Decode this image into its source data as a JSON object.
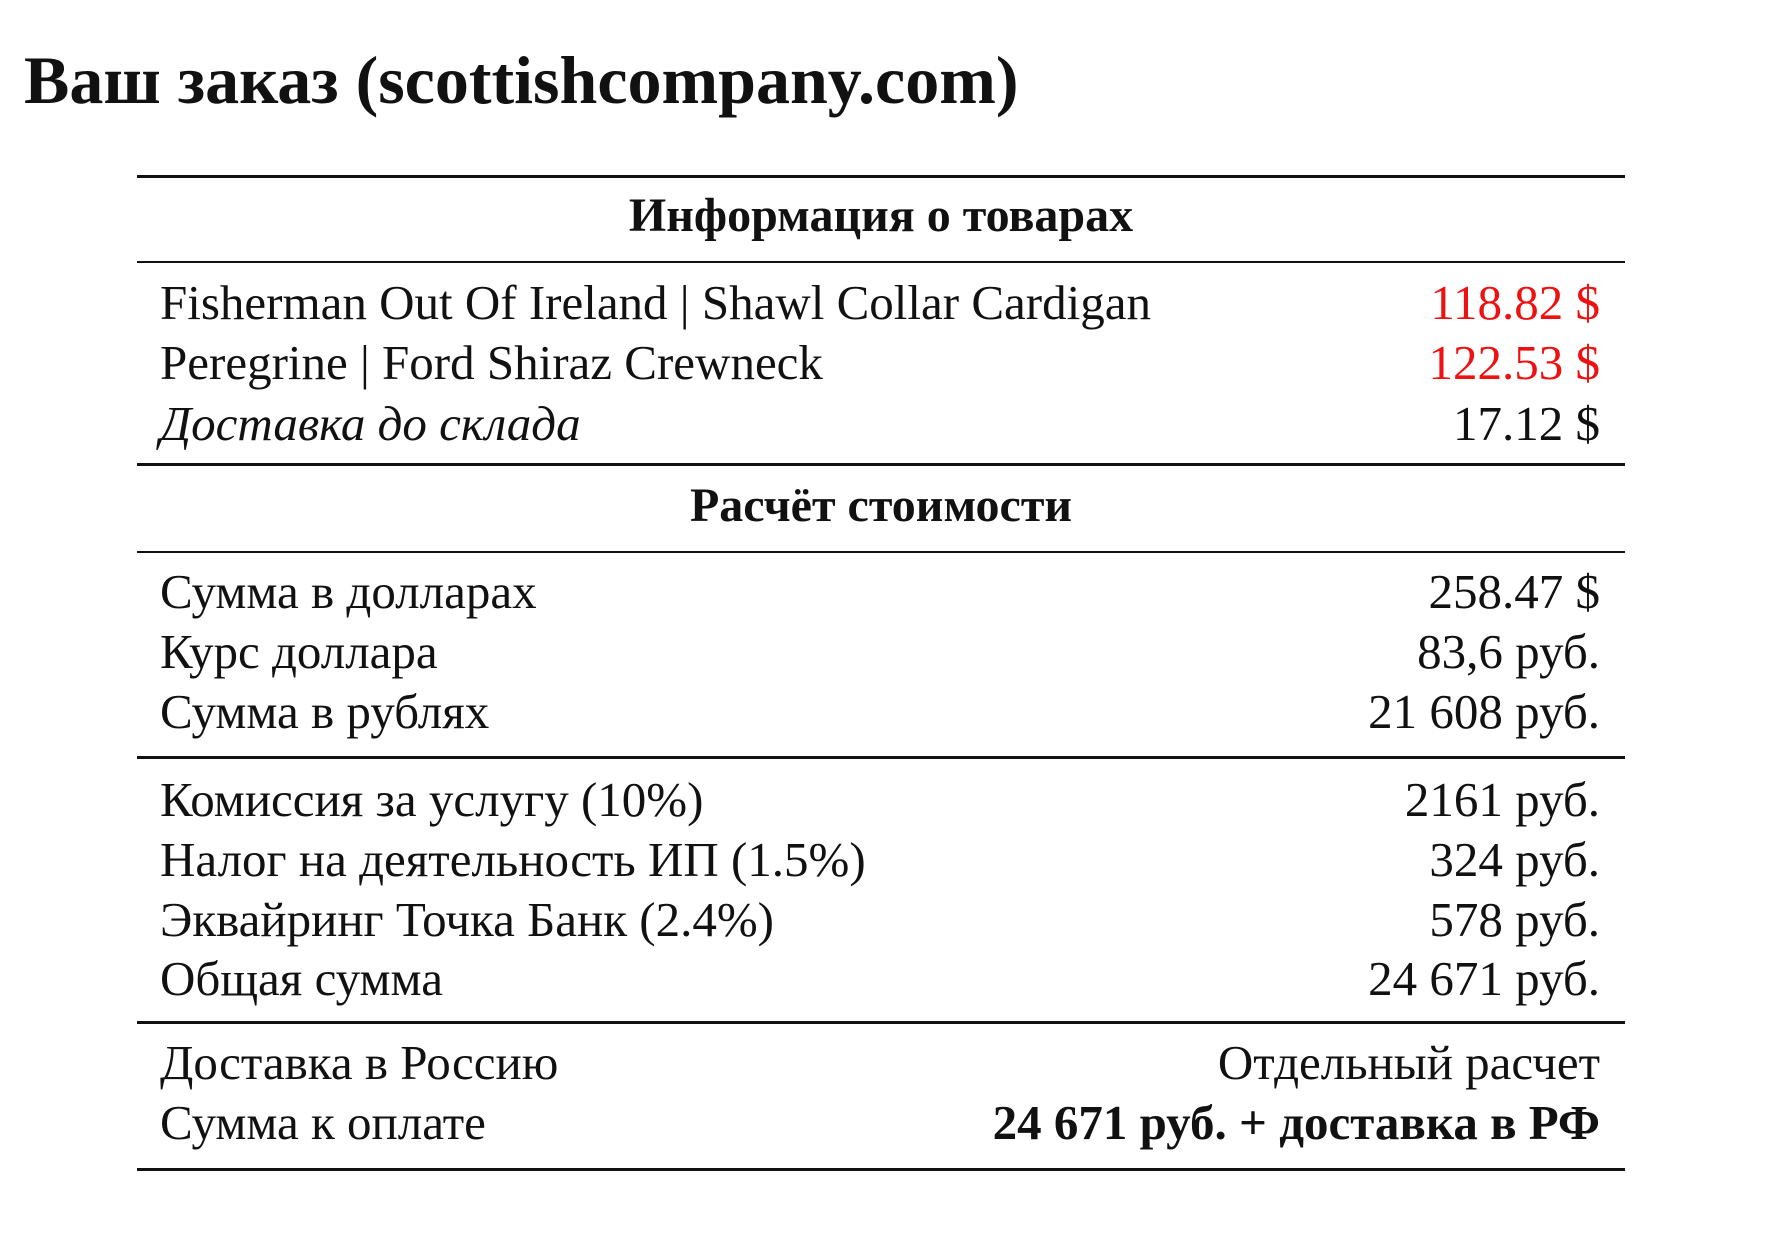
{
  "title": "Ваш заказ (scottishcompany.com)",
  "table": {
    "sections": [
      {
        "heading": "Информация о товарах",
        "rows": [
          {
            "label": "Fisherman Out Of Ireland | Shawl Collar Cardigan",
            "value": "118.82 $"
          },
          {
            "label": "Peregrine | Ford Shiraz Crewneck",
            "value": "122.53 $"
          },
          {
            "label": "Доставка до склада",
            "value": "17.12 $"
          }
        ]
      },
      {
        "heading": "Расчёт стоимости",
        "rows": [
          {
            "label": "Сумма в долларах",
            "value": "258.47 $"
          },
          {
            "label": "Курс доллара",
            "value": "83,6 руб."
          },
          {
            "label": "Сумма в рублях",
            "value": "21 608 руб."
          }
        ]
      },
      {
        "rows": [
          {
            "label": "Комиссия за услугу (10%)",
            "value": "2161 руб."
          },
          {
            "label": "Налог на деятельность ИП (1.5%)",
            "value": "324 руб."
          },
          {
            "label": "Эквайринг Точка Банк (2.4%)",
            "value": "578 руб."
          },
          {
            "label": "Общая сумма",
            "value": "24 671 руб."
          }
        ]
      },
      {
        "rows": [
          {
            "label": "Доставка в Россию",
            "value": "Отдельный расчет"
          },
          {
            "label": "Сумма к оплате",
            "value": "24 671 руб. + доставка в РФ"
          }
        ]
      }
    ]
  }
}
